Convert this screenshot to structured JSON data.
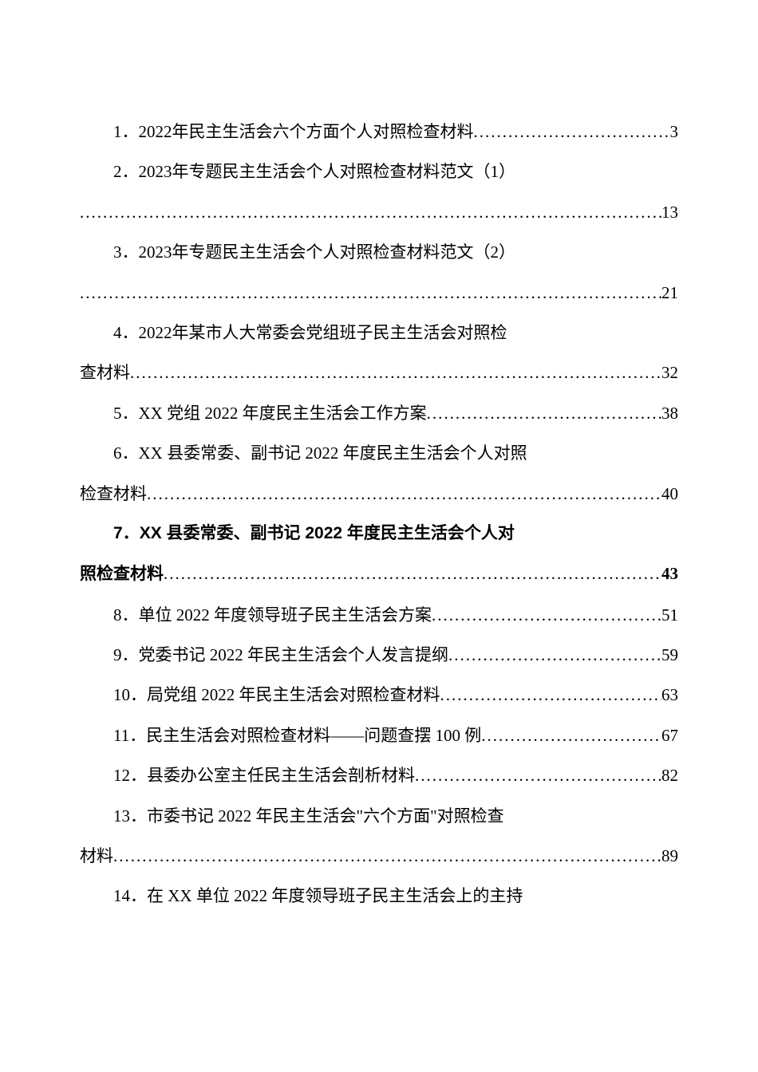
{
  "document": {
    "font_family": "SimSun",
    "font_size_pt": 16,
    "line_height": 2.4,
    "text_color": "#000000",
    "background_color": "#ffffff",
    "leader_char": "."
  },
  "toc": [
    {
      "number": "1．",
      "title": "2022年民主生活会六个方面个人对照检查材料",
      "page": "3",
      "bold": false,
      "continuation": null
    },
    {
      "number": "2．",
      "title": "2023年专题民主生活会个人对照检查材料范文（1）",
      "page": "13",
      "bold": false,
      "continuation": ""
    },
    {
      "number": "3．",
      "title": "2023年专题民主生活会个人对照检查材料范文（2）",
      "page": "21",
      "bold": false,
      "continuation": ""
    },
    {
      "number": "4．",
      "title": "2022年某市人大常委会党组班子民主生活会对照检",
      "page": "32",
      "bold": false,
      "continuation": "查材料"
    },
    {
      "number": "5．",
      "title": "XX 党组 2022 年度民主生活会工作方案",
      "page": "38",
      "bold": false,
      "continuation": null
    },
    {
      "number": "6．",
      "title": "XX 县委常委、副书记 2022 年度民主生活会个人对照",
      "page": "40",
      "bold": false,
      "continuation": "检查材料"
    },
    {
      "number": "7．",
      "title": "XX 县委常委、副书记 2022 年度民主生活会个人对",
      "page": "43",
      "bold": true,
      "continuation": "照检查材料"
    },
    {
      "number": "8．",
      "title": "单位 2022 年度领导班子民主生活会方案",
      "page": "51",
      "bold": false,
      "continuation": null
    },
    {
      "number": "9．",
      "title": "党委书记 2022 年民主生活会个人发言提纲",
      "page": "59",
      "bold": false,
      "continuation": null
    },
    {
      "number": "10．",
      "title": "局党组 2022 年民主生活会对照检查材料",
      "page": "63",
      "bold": false,
      "continuation": null
    },
    {
      "number": "11．",
      "title": "民主生活会对照检查材料——问题查摆 100 例",
      "page": "67",
      "bold": false,
      "continuation": null
    },
    {
      "number": "12．",
      "title": "县委办公室主任民主生活会剖析材料",
      "page": "82",
      "bold": false,
      "continuation": null
    },
    {
      "number": "13．",
      "title": "市委书记 2022 年民主生活会\"六个方面\"对照检查",
      "page": "89",
      "bold": false,
      "continuation": "材料"
    },
    {
      "number": "14．",
      "title": "在 XX 单位 2022 年度领导班子民主生活会上的主持",
      "page": null,
      "bold": false,
      "continuation": null
    }
  ]
}
